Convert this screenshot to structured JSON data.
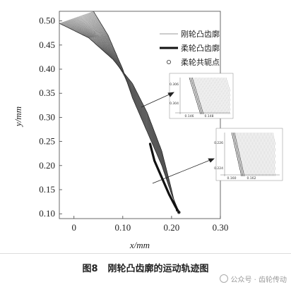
{
  "chart_data": {
    "type": "line",
    "xlabel": "x/mm",
    "ylabel": "y/mm",
    "xlim": [
      -0.03,
      0.3
    ],
    "ylim": [
      0.09,
      0.52
    ],
    "x_ticks": [
      "0",
      "0.10",
      "0.20",
      "0.30"
    ],
    "x_tick_values": [
      0,
      0.1,
      0.2,
      0.3
    ],
    "y_ticks": [
      "0.10",
      "0.15",
      "0.20",
      "0.25",
      "0.30",
      "0.35",
      "0.40",
      "0.45",
      "0.50"
    ],
    "y_tick_values": [
      0.1,
      0.15,
      0.2,
      0.25,
      0.3,
      0.35,
      0.4,
      0.45,
      0.5
    ],
    "legend_position": "top-right",
    "series": [
      {
        "name": "刚轮凸齿廓",
        "style": "thin-line",
        "color": "#555555",
        "left_edge": {
          "x": [
            -0.03,
            0.03,
            0.08,
            0.12,
            0.15,
            0.18,
            0.2,
            0.21
          ],
          "y": [
            0.495,
            0.465,
            0.42,
            0.37,
            0.31,
            0.23,
            0.15,
            0.105
          ]
        },
        "right_edge": {
          "x": [
            0.04,
            0.07,
            0.1,
            0.12,
            0.15,
            0.18,
            0.2,
            0.215
          ],
          "y": [
            0.52,
            0.47,
            0.4,
            0.34,
            0.27,
            0.2,
            0.14,
            0.105
          ]
        }
      },
      {
        "name": "柔轮凸齿廓",
        "style": "thick-line",
        "color": "#111111",
        "x": [
          0.156,
          0.165,
          0.18,
          0.195,
          0.208,
          0.215
        ],
        "y": [
          0.245,
          0.21,
          0.175,
          0.14,
          0.115,
          0.103
        ]
      },
      {
        "name": "柔轮共轭点",
        "style": "circle-marker",
        "color": "#333333",
        "x": [
          0.215
        ],
        "y": [
          0.103
        ]
      }
    ],
    "insets": [
      {
        "x_ticks": [
          "0.146",
          "0.148"
        ],
        "y_ticks": [
          "0.306",
          "0.304"
        ]
      },
      {
        "x_ticks": [
          "0.160",
          "0.162"
        ],
        "y_ticks": [
          "0.226",
          "0.224"
        ]
      }
    ]
  },
  "caption": {
    "number": "图8",
    "text": "刚轮凸齿廓的运动轨迹图"
  },
  "watermark": "公众号 · 齿轮传动"
}
